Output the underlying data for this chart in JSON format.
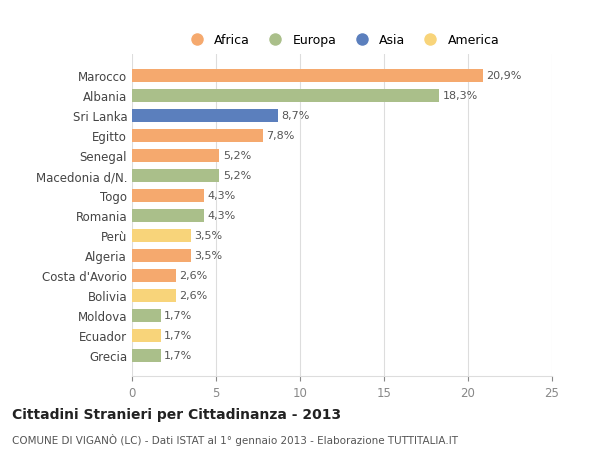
{
  "categories": [
    "Marocco",
    "Albania",
    "Sri Lanka",
    "Egitto",
    "Senegal",
    "Macedonia d/N.",
    "Togo",
    "Romania",
    "Perù",
    "Algeria",
    "Costa d'Avorio",
    "Bolivia",
    "Moldova",
    "Ecuador",
    "Grecia"
  ],
  "values": [
    20.9,
    18.3,
    8.7,
    7.8,
    5.2,
    5.2,
    4.3,
    4.3,
    3.5,
    3.5,
    2.6,
    2.6,
    1.7,
    1.7,
    1.7
  ],
  "labels": [
    "20,9%",
    "18,3%",
    "8,7%",
    "7,8%",
    "5,2%",
    "5,2%",
    "4,3%",
    "4,3%",
    "3,5%",
    "3,5%",
    "2,6%",
    "2,6%",
    "1,7%",
    "1,7%",
    "1,7%"
  ],
  "colors": [
    "#F5A96E",
    "#AABF8A",
    "#5B7FBD",
    "#F5A96E",
    "#F5A96E",
    "#AABF8A",
    "#F5A96E",
    "#AABF8A",
    "#F8D47A",
    "#F5A96E",
    "#F5A96E",
    "#F8D47A",
    "#AABF8A",
    "#F8D47A",
    "#AABF8A"
  ],
  "legend_labels": [
    "Africa",
    "Europa",
    "Asia",
    "America"
  ],
  "legend_colors": [
    "#F5A96E",
    "#AABF8A",
    "#5B7FBD",
    "#F8D47A"
  ],
  "xlim": [
    0,
    25
  ],
  "xticks": [
    0,
    5,
    10,
    15,
    20,
    25
  ],
  "title": "Cittadini Stranieri per Cittadinanza - 2013",
  "subtitle": "COMUNE DI VIGANÒ (LC) - Dati ISTAT al 1° gennaio 2013 - Elaborazione TUTTITALIA.IT",
  "bg_color": "#FFFFFF",
  "grid_color": "#DDDDDD",
  "bar_height": 0.65
}
